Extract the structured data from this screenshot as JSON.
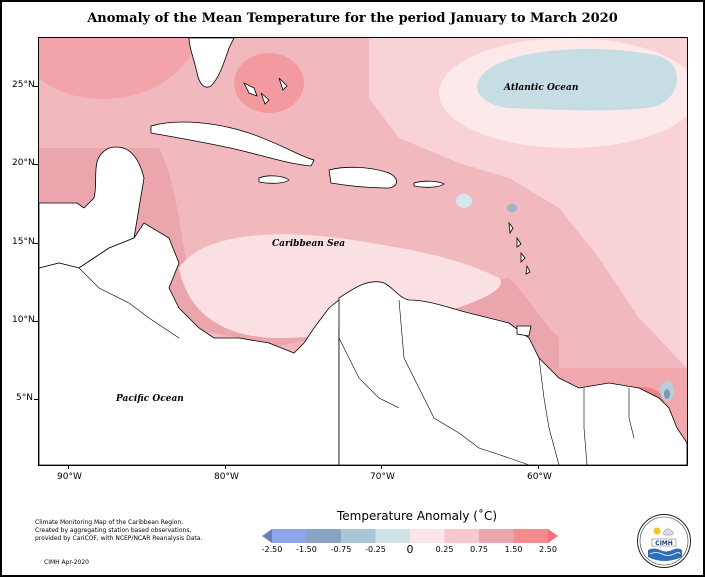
{
  "title": "Anomaly of the Mean Temperature for the period January to March 2020",
  "map": {
    "lat_labels": [
      "25°N",
      "20°N",
      "15°N",
      "10°N",
      "5°N"
    ],
    "lon_labels": [
      "90°W",
      "80°W",
      "70°W",
      "60°W"
    ],
    "region_labels": {
      "atlantic": "Atlantic Ocean",
      "caribbean": "Caribbean Sea",
      "pacific": "Pacific Ocean"
    }
  },
  "legend": {
    "title": "Temperature Anomaly (˚C)",
    "labels": [
      "-2.50",
      "-1.50",
      "-0.75",
      "-0.25",
      "0",
      "0.25",
      "0.75",
      "1.50",
      "2.50"
    ],
    "colors": [
      "#6f7fb3",
      "#8ba6e8",
      "#8da3c4",
      "#a9c6d6",
      "#cde3e8",
      "#fde5e8",
      "#f7c8ce",
      "#eba7ae",
      "#f28a8e",
      "#f46f78"
    ]
  },
  "credits": {
    "lines": [
      "Climate Monitoring Map of the Caribbean Region.",
      "Created by aggregating station based observations,",
      "provided by CariCOF, with NCEP/NCAR Reanalysis Data."
    ],
    "stamp": "CIMH Apr-2020"
  },
  "logo": {
    "text": "CIMH"
  }
}
